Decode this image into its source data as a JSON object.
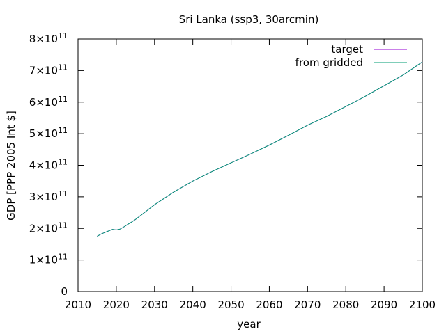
{
  "chart_data": {
    "type": "line",
    "title": "Sri Lanka (ssp3, 30arcmin)",
    "xlabel": "year",
    "ylabel": "GDP [PPP 2005 Int $]",
    "xlim": [
      2010,
      2100
    ],
    "ylim": [
      0,
      800000000000.0
    ],
    "xticks": [
      2010,
      2020,
      2030,
      2040,
      2050,
      2060,
      2070,
      2080,
      2090,
      2100
    ],
    "yticks": [
      {
        "value": 0,
        "label": "0",
        "exp": ""
      },
      {
        "value": 100000000000.0,
        "label": "1×10",
        "exp": "11"
      },
      {
        "value": 200000000000.0,
        "label": "2×10",
        "exp": "11"
      },
      {
        "value": 300000000000.0,
        "label": "3×10",
        "exp": "11"
      },
      {
        "value": 400000000000.0,
        "label": "4×10",
        "exp": "11"
      },
      {
        "value": 500000000000.0,
        "label": "5×10",
        "exp": "11"
      },
      {
        "value": 600000000000.0,
        "label": "6×10",
        "exp": "11"
      },
      {
        "value": 700000000000.0,
        "label": "7×10",
        "exp": "11"
      },
      {
        "value": 800000000000.0,
        "label": "8×10",
        "exp": "11"
      }
    ],
    "legend_position": "top-right",
    "grid": false,
    "x": [
      2015,
      2016,
      2017,
      2018,
      2019,
      2020,
      2021,
      2022,
      2023,
      2024,
      2025,
      2030,
      2035,
      2040,
      2045,
      2050,
      2055,
      2060,
      2065,
      2070,
      2075,
      2080,
      2085,
      2090,
      2095,
      2100
    ],
    "series": [
      {
        "name": "target",
        "color": "#9400d3",
        "values": [
          175000000000.0,
          182000000000.0,
          187000000000.0,
          192000000000.0,
          197000000000.0,
          195000000000.0,
          198000000000.0,
          205000000000.0,
          213000000000.0,
          220000000000.0,
          228000000000.0,
          275000000000.0,
          315000000000.0,
          350000000000.0,
          380000000000.0,
          408000000000.0,
          435000000000.0,
          464000000000.0,
          495000000000.0,
          527000000000.0,
          555000000000.0,
          586000000000.0,
          618000000000.0,
          652000000000.0,
          686000000000.0,
          727000000000.0
        ]
      },
      {
        "name": "from gridded",
        "color": "#009e73",
        "values": [
          175000000000.0,
          182000000000.0,
          187000000000.0,
          192000000000.0,
          197000000000.0,
          195000000000.0,
          198000000000.0,
          205000000000.0,
          213000000000.0,
          220000000000.0,
          228000000000.0,
          275000000000.0,
          315000000000.0,
          350000000000.0,
          380000000000.0,
          408000000000.0,
          435000000000.0,
          464000000000.0,
          495000000000.0,
          527000000000.0,
          555000000000.0,
          586000000000.0,
          618000000000.0,
          652000000000.0,
          686000000000.0,
          727000000000.0
        ]
      }
    ]
  }
}
